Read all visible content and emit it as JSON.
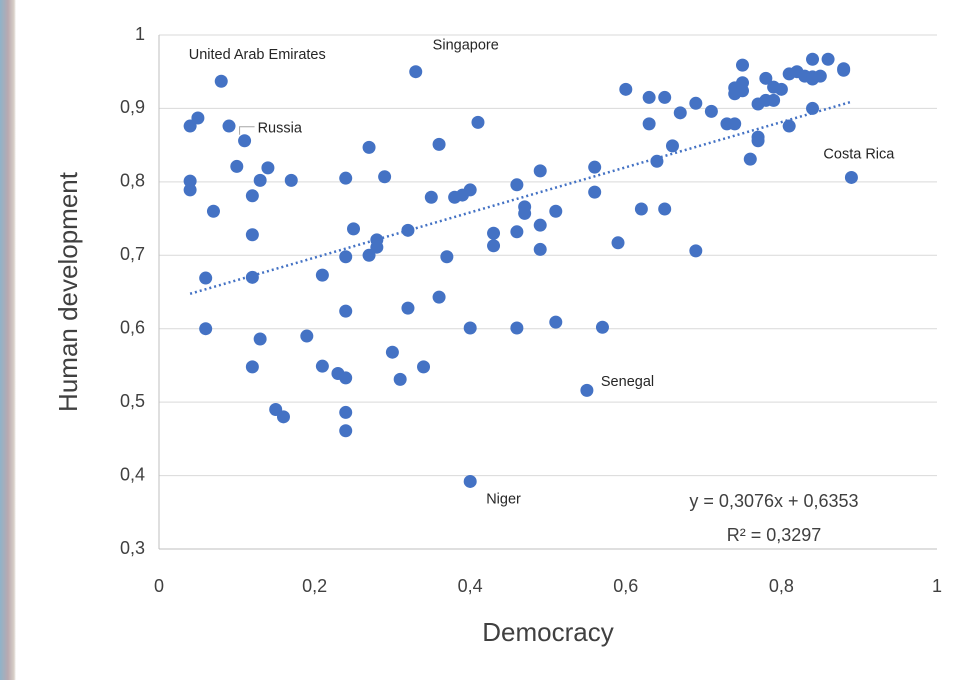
{
  "chart_data": {
    "type": "scatter",
    "x_label": "Democracy",
    "y_label": "Human development",
    "color": "#4472c4",
    "grid": true,
    "xlim": [
      0,
      1
    ],
    "ylim": [
      0.3,
      1
    ],
    "xticks": [
      0,
      {
        "value": 0.2,
        "label": "0,2"
      },
      {
        "value": 0.4,
        "label": "0,4"
      },
      {
        "value": 0.6,
        "label": "0,6"
      },
      {
        "value": 0.8,
        "label": "0,8"
      },
      1
    ],
    "yticks": [
      {
        "value": 0.3,
        "label": "0,3"
      },
      {
        "value": 0.4,
        "label": "0,4"
      },
      {
        "value": 0.5,
        "label": "0,5"
      },
      {
        "value": 0.6,
        "label": "0,6"
      },
      {
        "value": 0.7,
        "label": "0,7"
      },
      {
        "value": 0.8,
        "label": "0,8"
      },
      {
        "value": 0.9,
        "label": "0,9"
      },
      1
    ],
    "x": [
      0.04,
      0.05,
      0.08,
      0.09,
      0.11,
      0.1,
      0.14,
      0.13,
      0.17,
      0.04,
      0.04,
      0.07,
      0.12,
      0.12,
      0.12,
      0.06,
      0.06,
      0.13,
      0.12,
      0.15,
      0.16,
      0.19,
      0.21,
      0.21,
      0.23,
      0.24,
      0.24,
      0.24,
      0.24,
      0.24,
      0.24,
      0.25,
      0.27,
      0.27,
      0.28,
      0.28,
      0.29,
      0.3,
      0.31,
      0.32,
      0.32,
      0.33,
      0.34,
      0.35,
      0.36,
      0.36,
      0.37,
      0.38,
      0.39,
      0.4,
      0.4,
      0.4,
      0.41,
      0.43,
      0.43,
      0.46,
      0.46,
      0.46,
      0.47,
      0.47,
      0.49,
      0.49,
      0.49,
      0.51,
      0.51,
      0.55,
      0.56,
      0.56,
      0.57,
      0.59,
      0.6,
      0.62,
      0.63,
      0.63,
      0.64,
      0.65,
      0.65,
      0.66,
      0.67,
      0.69,
      0.69,
      0.71,
      0.73,
      0.74,
      0.74,
      0.74,
      0.75,
      0.75,
      0.75,
      0.76,
      0.77,
      0.77,
      0.77,
      0.78,
      0.78,
      0.79,
      0.79,
      0.8,
      0.81,
      0.81,
      0.82,
      0.83,
      0.84,
      0.84,
      0.84,
      0.84,
      0.86,
      0.88,
      0.88,
      0.85,
      0.89
    ],
    "y": [
      0.876,
      0.887,
      0.937,
      0.876,
      0.856,
      0.821,
      0.819,
      0.802,
      0.802,
      0.801,
      0.789,
      0.76,
      0.781,
      0.728,
      0.67,
      0.669,
      0.6,
      0.586,
      0.548,
      0.49,
      0.48,
      0.59,
      0.673,
      0.549,
      0.539,
      0.533,
      0.486,
      0.461,
      0.624,
      0.698,
      0.805,
      0.736,
      0.847,
      0.7,
      0.721,
      0.711,
      0.807,
      0.568,
      0.531,
      0.734,
      0.628,
      0.95,
      0.548,
      0.779,
      0.851,
      0.643,
      0.698,
      0.779,
      0.782,
      0.789,
      0.601,
      0.392,
      0.881,
      0.73,
      0.713,
      0.796,
      0.732,
      0.601,
      0.766,
      0.757,
      0.741,
      0.708,
      0.815,
      0.76,
      0.609,
      0.516,
      0.82,
      0.786,
      0.602,
      0.717,
      0.926,
      0.763,
      0.915,
      0.879,
      0.828,
      0.915,
      0.763,
      0.849,
      0.894,
      0.907,
      0.706,
      0.896,
      0.879,
      0.879,
      0.928,
      0.92,
      0.924,
      0.935,
      0.959,
      0.831,
      0.906,
      0.861,
      0.856,
      0.941,
      0.911,
      0.929,
      0.911,
      0.926,
      0.876,
      0.947,
      0.95,
      0.944,
      0.943,
      0.94,
      0.9,
      0.967,
      0.967,
      0.954,
      0.952,
      0.944,
      0.806
    ],
    "point_labels": [
      null,
      null,
      "United Arab Emirates",
      null,
      "Russia",
      null,
      null,
      null,
      null,
      null,
      null,
      null,
      null,
      null,
      null,
      null,
      null,
      null,
      null,
      null,
      null,
      null,
      null,
      null,
      null,
      null,
      null,
      null,
      null,
      null,
      null,
      null,
      null,
      null,
      null,
      null,
      null,
      null,
      null,
      null,
      null,
      "Singapore",
      null,
      null,
      null,
      null,
      null,
      null,
      null,
      null,
      null,
      "Niger",
      null,
      null,
      null,
      null,
      null,
      null,
      null,
      null,
      null,
      null,
      null,
      null,
      null,
      "Senegal",
      null,
      null,
      null,
      null,
      null,
      null,
      null,
      null,
      null,
      null,
      null,
      null,
      null,
      null,
      null,
      null,
      null,
      null,
      null,
      null,
      null,
      null,
      null,
      null,
      null,
      null,
      null,
      null,
      null,
      null,
      null,
      null,
      null,
      null,
      null,
      null,
      null,
      null,
      null,
      null,
      null,
      null,
      null,
      null,
      "Costa Rica"
    ],
    "trendline": {
      "slope": 0.3076,
      "intercept": 0.6353,
      "equation": "y = 0,3076x + 0,6353",
      "r_squared": "R² = 0,3297"
    }
  }
}
